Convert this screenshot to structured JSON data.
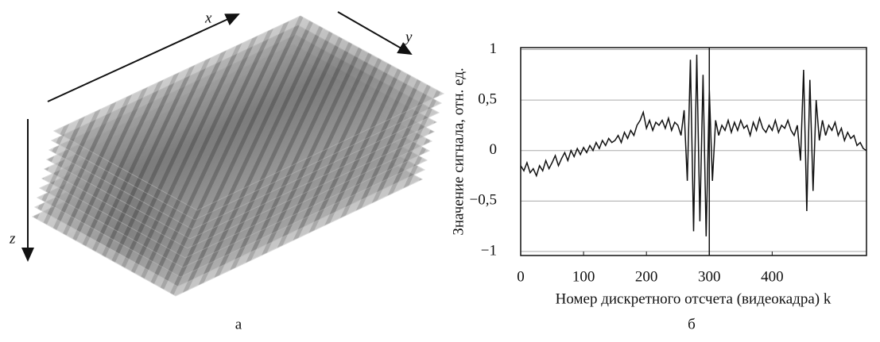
{
  "panel_a": {
    "axis_labels": [
      "x",
      "y",
      "z"
    ],
    "caption": "а"
  },
  "caption_b": "б",
  "chart_data": {
    "type": "line",
    "y_label": "Значение сигнала, отн. ед.",
    "x_label": "Номер дискретного отсчета (видеокадра) k",
    "x": [
      0,
      5,
      10,
      15,
      20,
      25,
      30,
      35,
      40,
      45,
      50,
      55,
      60,
      65,
      70,
      75,
      80,
      85,
      90,
      95,
      100,
      105,
      110,
      115,
      120,
      125,
      130,
      135,
      140,
      145,
      150,
      155,
      160,
      165,
      170,
      175,
      180,
      185,
      190,
      195,
      200,
      205,
      210,
      215,
      220,
      225,
      230,
      235,
      240,
      245,
      250,
      255,
      260,
      265,
      270,
      275,
      280,
      285,
      290,
      295,
      300,
      305,
      310,
      315,
      320,
      325,
      330,
      335,
      340,
      345,
      350,
      355,
      360,
      365,
      370,
      375,
      380,
      385,
      390,
      395,
      400,
      405,
      410,
      415,
      420,
      425,
      430,
      435,
      440,
      445,
      450,
      455,
      460,
      465,
      470,
      475,
      480,
      485,
      490,
      495,
      500,
      505,
      510,
      515,
      520,
      525,
      530,
      535,
      540,
      545,
      550
    ],
    "values": [
      -0.15,
      -0.2,
      -0.12,
      -0.22,
      -0.18,
      -0.25,
      -0.15,
      -0.2,
      -0.1,
      -0.18,
      -0.12,
      -0.05,
      -0.15,
      -0.08,
      -0.02,
      -0.1,
      0.0,
      -0.06,
      0.02,
      -0.04,
      0.03,
      -0.02,
      0.05,
      0.0,
      0.08,
      0.02,
      0.1,
      0.05,
      0.12,
      0.08,
      0.1,
      0.15,
      0.08,
      0.18,
      0.12,
      0.2,
      0.15,
      0.25,
      0.3,
      0.38,
      0.22,
      0.3,
      0.2,
      0.28,
      0.25,
      0.3,
      0.22,
      0.32,
      0.2,
      0.28,
      0.25,
      0.15,
      0.4,
      -0.3,
      0.9,
      -0.8,
      0.95,
      -0.7,
      0.75,
      -0.85,
      0.6,
      -0.3,
      0.3,
      0.15,
      0.25,
      0.2,
      0.3,
      0.18,
      0.28,
      0.2,
      0.3,
      0.22,
      0.25,
      0.15,
      0.28,
      0.2,
      0.32,
      0.22,
      0.18,
      0.25,
      0.2,
      0.3,
      0.18,
      0.25,
      0.22,
      0.3,
      0.2,
      0.15,
      0.25,
      -0.1,
      0.8,
      -0.6,
      0.7,
      -0.4,
      0.5,
      0.1,
      0.3,
      0.15,
      0.25,
      0.2,
      0.28,
      0.15,
      0.22,
      0.1,
      0.18,
      0.12,
      0.15,
      0.05,
      0.08,
      0.02,
      0.0
    ],
    "color": "#111111",
    "vline": 300,
    "xlim": [
      0,
      550
    ],
    "ylim": [
      -1.04,
      1.02
    ],
    "xticks": [
      0,
      100,
      200,
      300,
      400
    ],
    "yticks": [
      {
        "value": -1,
        "label": "−1"
      },
      {
        "value": -0.5,
        "label": "−0,5"
      },
      0,
      {
        "value": 0.5,
        "label": "0,5"
      },
      1
    ],
    "grid": true
  }
}
